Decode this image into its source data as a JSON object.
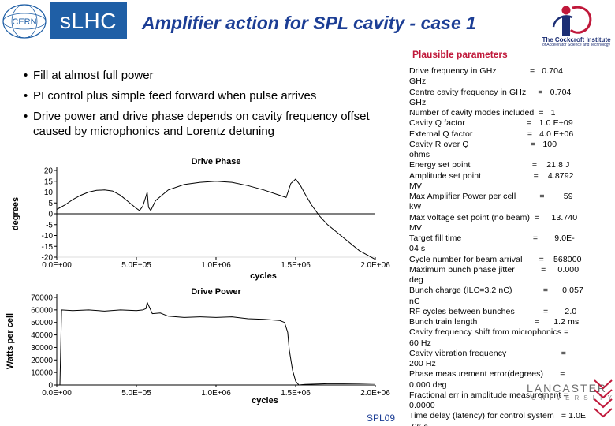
{
  "header": {
    "logo_text": "CERN",
    "project_label": "sLHC",
    "title": "Amplifier action for SPL cavity - case 1",
    "partner_logo_text": "The Cockcroft Institute",
    "partner_logo_subtitle": "of Accelerator Science and Technology"
  },
  "bullets": [
    "Fill at almost full power",
    "PI control plus simple feed forward when pulse arrives",
    "Drive power and drive phase depends on cavity frequency offset caused by microphonics and Lorentz detuning"
  ],
  "parameters": {
    "heading": "Plausible parameters",
    "lines": [
      "Drive frequency in GHz              =   0.704",
      "GHz",
      "Centre cavity frequency in GHz     =   0.704",
      "GHz",
      "Number of cavity modes included  =   1",
      "Cavity Q factor                          =   1.0 E+09",
      "External Q factor                       =   4.0 E+06",
      "Cavity R over Q                          =   100",
      "ohms",
      "Energy set point                          =    21.8 J",
      "Amplitude set point                      =    4.8792",
      "MV",
      "Max Amplifier Power per cell          =        59",
      "kW",
      "Max voltage set point (no beam)  =     13.740",
      "MV",
      "Target fill time                              =       9.0E-",
      "04 s",
      "Cycle number for beam arrival       =    568000",
      "Maximum bunch phase jitter           =     0.000",
      "deg",
      "Bunch charge (ILC=3.2 nC)             =      0.057",
      "nC",
      "RF cycles between bunches            =       2.0",
      "Bunch train length                        =      1.2 ms",
      "Cavity frequency shift from microphonics =",
      "60 Hz",
      "Cavity vibration frequency                       =",
      "200 Hz",
      "Phase measurement error(degrees)       =",
      "0.000 deg",
      "Fractional err in amplitude measurement =",
      "0.0000",
      "Time delay (latency) for control system   = 1.0E",
      "-06 s"
    ]
  },
  "footer": {
    "label": "SPL09",
    "lancaster": "LANCASTER",
    "university": "UNIVERSITY"
  },
  "colors": {
    "title_blue": "#1c3e95",
    "slhc_blue": "#1f5fa6",
    "plausible_red": "#c0183a"
  },
  "chart_data": [
    {
      "type": "line",
      "title": "Drive Phase",
      "xlabel": "cycles",
      "ylabel": "degrees",
      "xlim": [
        0,
        2000000
      ],
      "ylim": [
        -20,
        20
      ],
      "x_ticks": [
        0,
        500000,
        1000000,
        1500000,
        2000000
      ],
      "x_tick_labels": [
        "0.0E+00",
        "5.0E+05",
        "1.0E+06",
        "1.5E+06",
        "2.0E+06"
      ],
      "y_ticks": [
        20,
        15,
        10,
        5,
        0,
        -5,
        -10,
        -15,
        -20
      ],
      "grid": false,
      "series": [
        {
          "x": [
            0,
            50000,
            100000,
            150000,
            200000,
            250000,
            300000,
            350000,
            400000,
            450000,
            500000,
            520000,
            540000,
            560000,
            568000,
            576000,
            590000,
            620000,
            700000,
            800000,
            900000,
            1000000,
            1100000,
            1200000,
            1300000,
            1400000,
            1440000,
            1470000,
            1500000,
            1530000,
            1560000,
            1600000,
            1650000,
            1700000,
            1750000,
            1800000,
            1850000,
            1900000,
            1950000,
            2000000
          ],
          "y": [
            2,
            4,
            6.5,
            8.5,
            10,
            10.8,
            11,
            10.5,
            8.5,
            5.5,
            2.5,
            1.5,
            3.5,
            8,
            10,
            3,
            1.5,
            6,
            11,
            13.5,
            14.5,
            15,
            14.5,
            13,
            11,
            8.5,
            7.5,
            14,
            16,
            13,
            9,
            4,
            -1,
            -5,
            -8,
            -11,
            -14,
            -17,
            -19,
            -21
          ]
        }
      ]
    },
    {
      "type": "line",
      "title": "Drive Power",
      "xlabel": "cycles",
      "ylabel": "Watts per cell",
      "xlim": [
        0,
        2000000
      ],
      "ylim": [
        0,
        70000
      ],
      "x_ticks": [
        0,
        500000,
        1000000,
        1500000,
        2000000
      ],
      "x_tick_labels": [
        "0.0E+00",
        "5.0E+05",
        "1.0E+06",
        "1.5E+06",
        "2.0E+06"
      ],
      "y_ticks": [
        70000,
        60000,
        50000,
        40000,
        30000,
        20000,
        10000,
        0
      ],
      "grid": false,
      "series": [
        {
          "x": [
            0,
            20000,
            30000,
            100000,
            200000,
            300000,
            400000,
            500000,
            540000,
            560000,
            568000,
            600000,
            650000,
            700000,
            800000,
            900000,
            1000000,
            1100000,
            1200000,
            1300000,
            1400000,
            1430000,
            1450000,
            1460000,
            1480000,
            1500000,
            1520000,
            1560000,
            1700000,
            1800000,
            1900000,
            2000000
          ],
          "y": [
            0,
            0,
            60000,
            59500,
            60000,
            59000,
            60000,
            59500,
            60000,
            61000,
            66000,
            57000,
            57500,
            55000,
            54000,
            54500,
            54000,
            54500,
            53000,
            52500,
            51500,
            50000,
            42000,
            28000,
            12000,
            3000,
            0,
            500,
            1000,
            1000,
            1200,
            1500
          ]
        }
      ]
    }
  ]
}
